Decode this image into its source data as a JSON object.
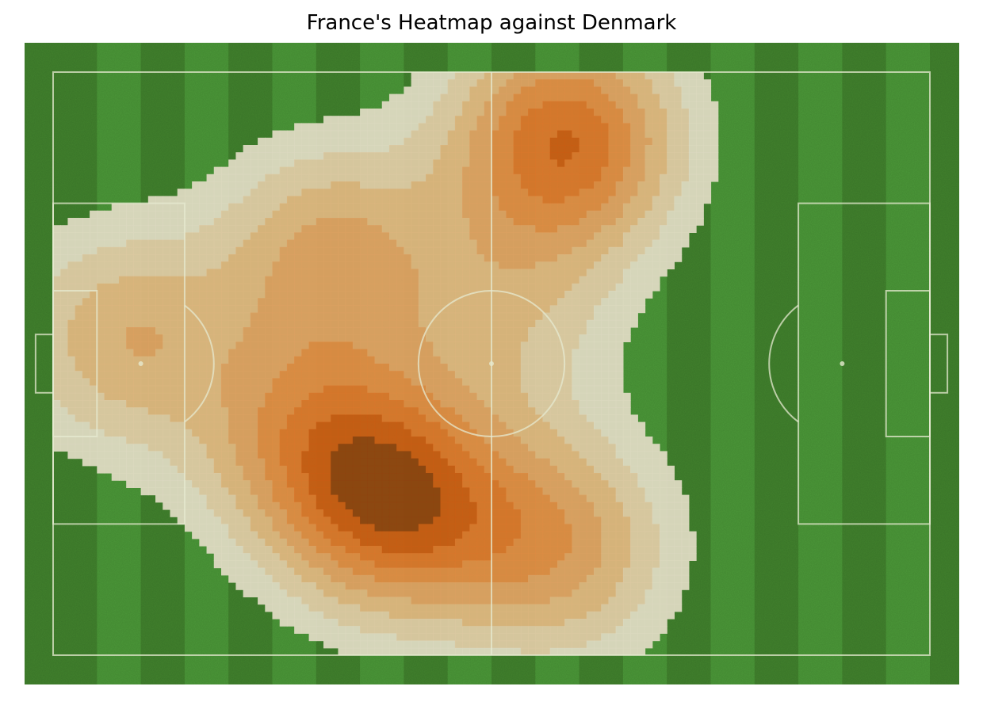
{
  "chart_data": {
    "type": "heatmap",
    "title": "France's Heatmap against Denmark",
    "xlabel": "",
    "ylabel": "",
    "pitch": {
      "length": 120,
      "width": 80,
      "grass_color": "#41822d",
      "stripe_color": "#4c9a3a",
      "line_color": "#e6ead0"
    },
    "colormap": [
      "#dcd8c0",
      "#dcc9a2",
      "#dcb57e",
      "#dca062",
      "#dd8b44",
      "#d9772c",
      "#c85d14",
      "#8f4510"
    ],
    "levels": 8,
    "density_peaks": [
      {
        "x": 9.5,
        "y": 36.5,
        "weight": 0.55
      },
      {
        "x": 70,
        "y": 9.5,
        "weight": 1.0
      },
      {
        "x": 47,
        "y": 59,
        "weight": 1.0
      },
      {
        "x": 69,
        "y": 65,
        "weight": 0.65
      },
      {
        "x": 38,
        "y": 25,
        "weight": 0.6
      },
      {
        "x": 34,
        "y": 50,
        "weight": 0.55
      },
      {
        "x": 62,
        "y": 33,
        "weight": 0.35
      }
    ]
  }
}
